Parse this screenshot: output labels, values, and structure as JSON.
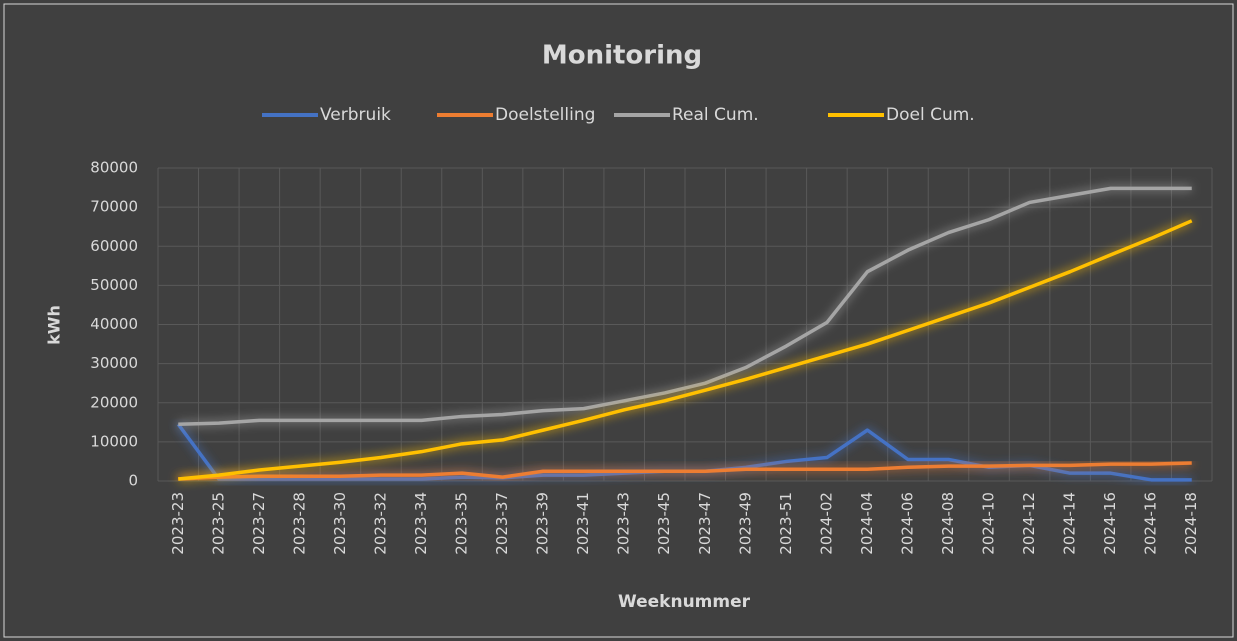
{
  "chart_data": {
    "type": "line",
    "title": "Monitoring",
    "x_label": "Weeknummer",
    "y_label": "kWh",
    "categories": [
      "2023-23",
      "2023-25",
      "2023-27",
      "2023-28",
      "2023-30",
      "2023-32",
      "2023-34",
      "2023-35",
      "2023-37",
      "2023-39",
      "2023-41",
      "2023-43",
      "2023-45",
      "2023-47",
      "2023-49",
      "2023-51",
      "2024-02",
      "2024-04",
      "2024-06",
      "2024-08",
      "2024-10",
      "2024-12",
      "2024-14",
      "2024-16",
      "2024-16",
      "2024-18"
    ],
    "series": [
      {
        "name": "Verbruik",
        "color": "#4472c4",
        "values": [
          14500,
          500,
          500,
          500,
          500,
          500,
          500,
          1000,
          800,
          1500,
          1500,
          2000,
          2500,
          2500,
          3500,
          5000,
          6000,
          13000,
          5500,
          5500,
          3500,
          4000,
          2000,
          2000,
          300,
          300
        ]
      },
      {
        "name": "Doelstelling",
        "color": "#ed7d31",
        "values": [
          500,
          1000,
          1200,
          1200,
          1200,
          1500,
          1500,
          2000,
          1000,
          2500,
          2500,
          2500,
          2500,
          2500,
          3000,
          3000,
          3000,
          3000,
          3500,
          3800,
          3800,
          4000,
          4000,
          4300,
          4300,
          4600
        ]
      },
      {
        "name": "Real Cum.",
        "color": "#a5a5a5",
        "values": [
          14500,
          14800,
          15500,
          15500,
          15500,
          15500,
          15500,
          16500,
          17000,
          18000,
          18500,
          20500,
          22500,
          25000,
          29000,
          34500,
          40500,
          53500,
          59000,
          63500,
          66800,
          71200,
          73000,
          74800,
          74800,
          74800
        ]
      },
      {
        "name": "Doel Cum.",
        "color": "#ffc000",
        "values": [
          500,
          1500,
          2800,
          3800,
          4800,
          6000,
          7500,
          9500,
          10500,
          13000,
          15500,
          18200,
          20500,
          23200,
          26000,
          29000,
          32000,
          35000,
          38500,
          42000,
          45500,
          49500,
          53500,
          57800,
          62000,
          66500
        ]
      }
    ],
    "ylim": [
      0,
      80000
    ],
    "yticks": [
      0,
      10000,
      20000,
      30000,
      40000,
      50000,
      60000,
      70000,
      80000
    ],
    "grid": true,
    "legend": "top"
  }
}
